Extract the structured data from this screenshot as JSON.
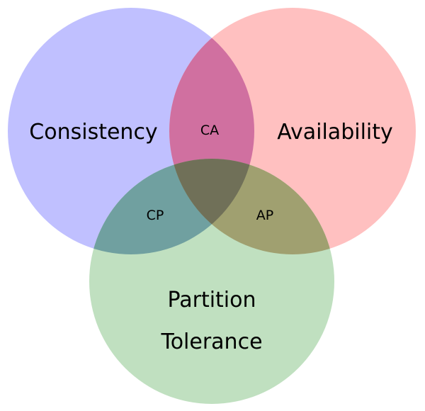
{
  "sets": {
    "consistency": {
      "label": "Consistency",
      "color": "#c0c0ff"
    },
    "availability": {
      "label": "Availability",
      "color": "#ffc0c0"
    },
    "partition": {
      "label_line1": "Partition",
      "label_line2": "Tolerance",
      "color": "#c0e0c0"
    }
  },
  "intersections": {
    "ca": {
      "label": "CA",
      "color": "#d070a0"
    },
    "cp": {
      "label": "CP",
      "color": "#70a0a0"
    },
    "ap": {
      "label": "AP",
      "color": "#a0a070"
    },
    "cap": {
      "color": "#707058"
    }
  }
}
